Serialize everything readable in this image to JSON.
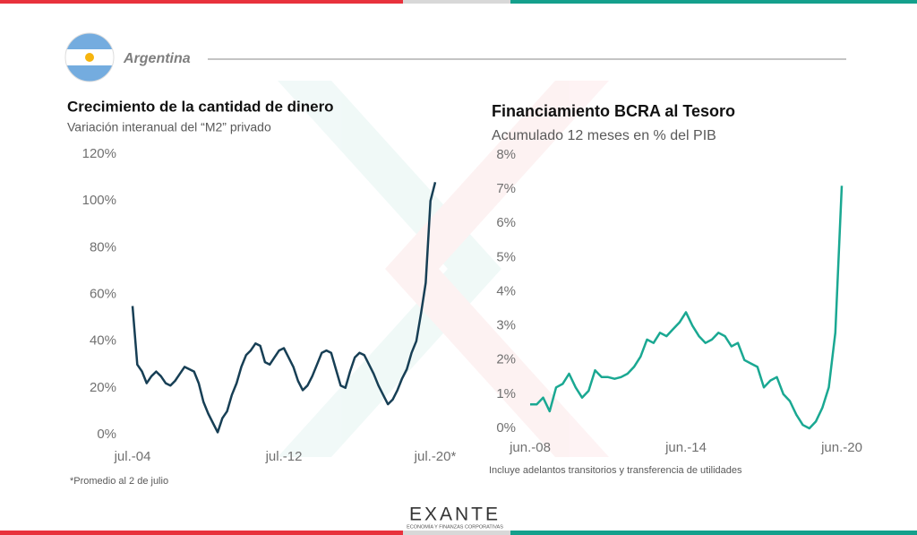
{
  "header": {
    "country": "Argentina"
  },
  "logo": {
    "name": "EXANTE",
    "tagline": "ECONOMÍA Y FINANZAS CORPORATIVAS"
  },
  "chart_data": [
    {
      "type": "line",
      "title": "Crecimiento de la cantidad de dinero",
      "subtitle": "Variación interanual del “M2” privado",
      "note": "*Promedio al 2 de julio",
      "categories": [
        "jul.-04",
        null,
        null,
        null,
        null,
        null,
        null,
        null,
        null,
        null,
        null,
        null,
        null,
        null,
        null,
        null,
        null,
        null,
        null,
        null,
        null,
        null,
        null,
        null,
        null,
        null,
        null,
        null,
        null,
        null,
        null,
        null,
        "jul.-12",
        null,
        null,
        null,
        null,
        null,
        null,
        null,
        null,
        null,
        null,
        null,
        null,
        null,
        null,
        null,
        null,
        null,
        null,
        null,
        null,
        null,
        null,
        null,
        null,
        null,
        null,
        null,
        null,
        null,
        null,
        null,
        "jul.-20*"
      ],
      "series": [
        {
          "name": "M2 privado",
          "color": "#173f55",
          "values": [
            55,
            30,
            27,
            22,
            25,
            27,
            25,
            22,
            21,
            23,
            26,
            29,
            28,
            27,
            22,
            14,
            9,
            5,
            1,
            7,
            10,
            17,
            22,
            29,
            34,
            36,
            39,
            38,
            31,
            30,
            33,
            36,
            37,
            33,
            29,
            23,
            19,
            21,
            25,
            30,
            35,
            36,
            35,
            28,
            21,
            20,
            27,
            33,
            35,
            34,
            30,
            26,
            21,
            17,
            13,
            15,
            19,
            24,
            28,
            35,
            40,
            52,
            65,
            100,
            108
          ]
        }
      ],
      "ylim": [
        0,
        120
      ],
      "yticks": [
        {
          "value": 0,
          "label": "0%"
        },
        {
          "value": 20,
          "label": "20%"
        },
        {
          "value": 40,
          "label": "40%"
        },
        {
          "value": 60,
          "label": "60%"
        },
        {
          "value": 80,
          "label": "80%"
        },
        {
          "value": 100,
          "label": "100%"
        },
        {
          "value": 120,
          "label": "120%"
        }
      ]
    },
    {
      "type": "line",
      "title": "Financiamiento BCRA al Tesoro",
      "subtitle": "Acumulado 12 meses en % del PIB",
      "note": "Incluye adelantos transitorios y transferencia de utilidades",
      "categories": [
        "jun.-08",
        null,
        null,
        null,
        null,
        null,
        null,
        null,
        null,
        null,
        null,
        null,
        null,
        null,
        null,
        null,
        null,
        null,
        null,
        null,
        null,
        null,
        null,
        null,
        "jun.-14",
        null,
        null,
        null,
        null,
        null,
        null,
        null,
        null,
        null,
        null,
        null,
        null,
        null,
        null,
        null,
        null,
        null,
        null,
        null,
        null,
        null,
        null,
        null,
        "jun.-20"
      ],
      "series": [
        {
          "name": "Financiamiento",
          "color": "#1aa892",
          "values": [
            0.7,
            0.7,
            0.9,
            0.5,
            1.2,
            1.3,
            1.6,
            1.2,
            0.9,
            1.1,
            1.7,
            1.5,
            1.5,
            1.45,
            1.5,
            1.6,
            1.8,
            2.1,
            2.6,
            2.5,
            2.8,
            2.7,
            2.9,
            3.1,
            3.4,
            3.0,
            2.7,
            2.5,
            2.6,
            2.8,
            2.7,
            2.4,
            2.5,
            2.0,
            1.9,
            1.8,
            1.2,
            1.4,
            1.5,
            1.0,
            0.8,
            0.4,
            0.1,
            0.0,
            0.2,
            0.6,
            1.2,
            2.8,
            7.1
          ]
        }
      ],
      "ylim": [
        0,
        8
      ],
      "yticks": [
        {
          "value": 0,
          "label": "0%"
        },
        {
          "value": 1,
          "label": "1%"
        },
        {
          "value": 2,
          "label": "2%"
        },
        {
          "value": 3,
          "label": "3%"
        },
        {
          "value": 4,
          "label": "4%"
        },
        {
          "value": 5,
          "label": "5%"
        },
        {
          "value": 6,
          "label": "6%"
        },
        {
          "value": 7,
          "label": "7%"
        },
        {
          "value": 8,
          "label": "8%"
        }
      ]
    }
  ]
}
